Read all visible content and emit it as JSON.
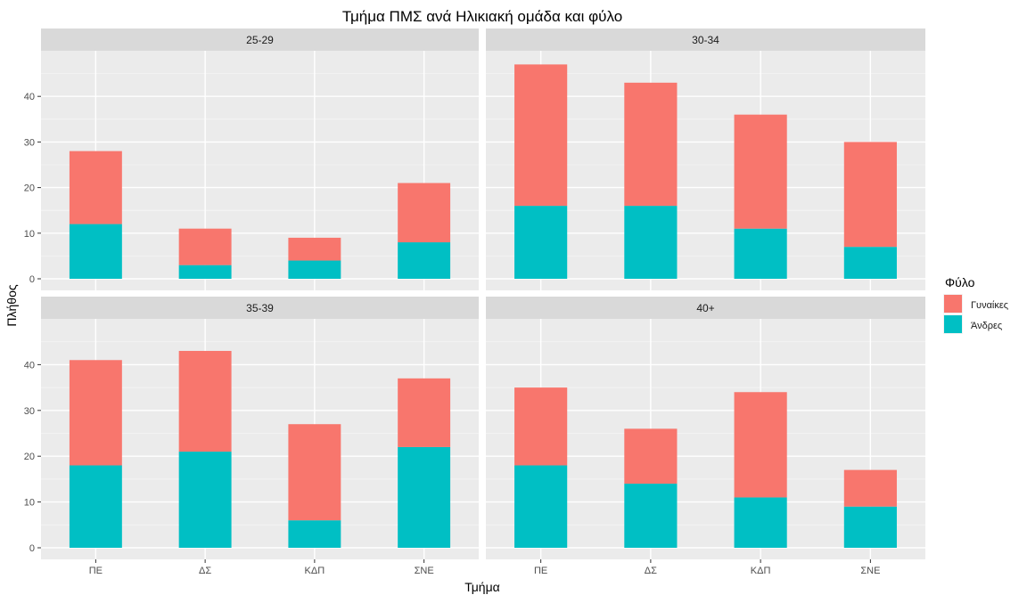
{
  "chart_data": {
    "type": "bar",
    "stacked": true,
    "faceted": true,
    "title": "Τμήμα ΠΜΣ ανά Ηλικιακή ομάδα και φύλο",
    "xlabel": "Τμήμα",
    "ylabel": "Πλήθος",
    "ylim": [
      0,
      50
    ],
    "yticks": [
      0,
      10,
      20,
      30,
      40
    ],
    "categories": [
      "ΠΕ",
      "ΔΣ",
      "ΚΔΠ",
      "ΣΝΕ"
    ],
    "legend": {
      "title": "Φύλο",
      "position": "right",
      "entries": [
        {
          "label": "Γυναίκες",
          "color": "#F8766D"
        },
        {
          "label": "Άνδρες",
          "color": "#00BFC4"
        }
      ]
    },
    "grid": true,
    "facets": [
      {
        "label": "25-29",
        "series": [
          {
            "name": "Άνδρες",
            "values": [
              12,
              3,
              4,
              8
            ]
          },
          {
            "name": "Γυναίκες",
            "values": [
              16,
              8,
              5,
              13
            ]
          }
        ]
      },
      {
        "label": "30-34",
        "series": [
          {
            "name": "Άνδρες",
            "values": [
              16,
              16,
              11,
              7
            ]
          },
          {
            "name": "Γυναίκες",
            "values": [
              31,
              27,
              25,
              23
            ]
          }
        ]
      },
      {
        "label": "35-39",
        "series": [
          {
            "name": "Άνδρες",
            "values": [
              18,
              21,
              6,
              22
            ]
          },
          {
            "name": "Γυναίκες",
            "values": [
              23,
              22,
              21,
              15
            ]
          }
        ]
      },
      {
        "label": "40+",
        "series": [
          {
            "name": "Άνδρες",
            "values": [
              18,
              14,
              11,
              9
            ]
          },
          {
            "name": "Γυναίκες",
            "values": [
              17,
              12,
              23,
              8
            ]
          }
        ]
      }
    ]
  }
}
